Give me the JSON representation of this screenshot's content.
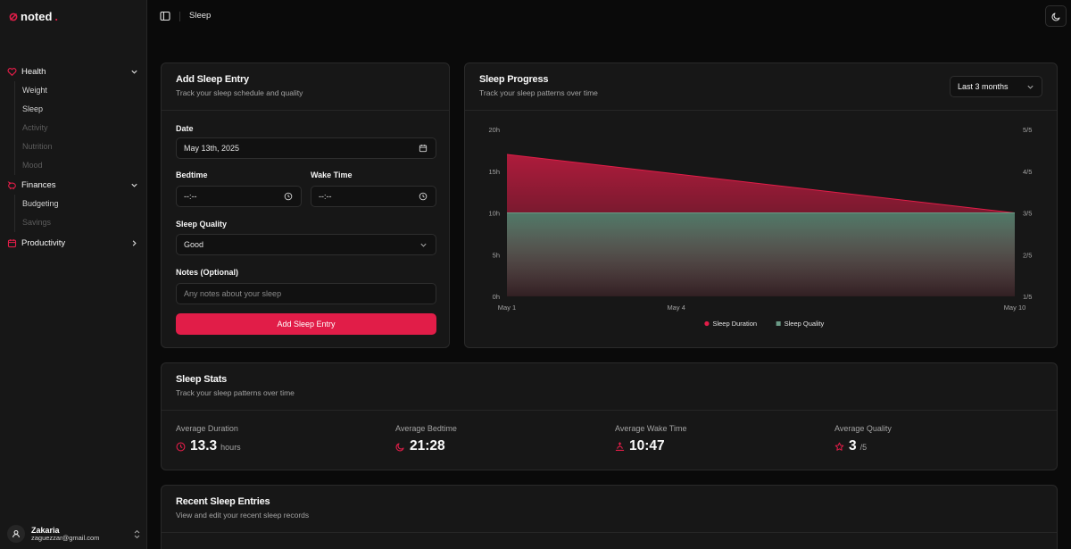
{
  "app": {
    "name": "noted",
    "name_dot": "."
  },
  "sidebar": {
    "groups": [
      {
        "label": "Health",
        "expanded": true,
        "items": [
          {
            "label": "Weight",
            "enabled": true
          },
          {
            "label": "Sleep",
            "enabled": true
          },
          {
            "label": "Activity",
            "enabled": false
          },
          {
            "label": "Nutrition",
            "enabled": false
          },
          {
            "label": "Mood",
            "enabled": false
          }
        ]
      },
      {
        "label": "Finances",
        "expanded": true,
        "items": [
          {
            "label": "Budgeting",
            "enabled": true
          },
          {
            "label": "Savings",
            "enabled": false
          }
        ]
      },
      {
        "label": "Productivity",
        "expanded": false,
        "items": []
      }
    ],
    "user": {
      "name": "Zakaria",
      "email": "zaguezzar@gmail.com"
    }
  },
  "header": {
    "breadcrumb": "Sleep"
  },
  "entry_form": {
    "title": "Add Sleep Entry",
    "subtitle": "Track your sleep schedule and quality",
    "date_label": "Date",
    "date_value": "May 13th, 2025",
    "bedtime_label": "Bedtime",
    "bedtime_value": "--:--",
    "waketime_label": "Wake Time",
    "waketime_value": "--:--",
    "quality_label": "Sleep Quality",
    "quality_value": "Good",
    "notes_label": "Notes (Optional)",
    "notes_placeholder": "Any notes about your sleep",
    "submit_label": "Add Sleep Entry"
  },
  "progress": {
    "title": "Sleep Progress",
    "subtitle": "Track your sleep patterns over time",
    "range_value": "Last 3 months"
  },
  "chart_data": {
    "type": "area",
    "x": [
      "May 1",
      "May 10"
    ],
    "x_ticks": [
      "May 1",
      "May 4",
      "May 10"
    ],
    "series": [
      {
        "name": "Sleep Duration",
        "axis": "left",
        "values": [
          17,
          10
        ],
        "color": "#e11d48"
      },
      {
        "name": "Sleep Quality",
        "axis": "right",
        "values": [
          3,
          3
        ],
        "color": "#4f7a68"
      }
    ],
    "y_left": {
      "ticks": [
        "0h",
        "5h",
        "10h",
        "15h",
        "20h"
      ],
      "ylim": [
        0,
        20
      ]
    },
    "y_right": {
      "ticks": [
        "1/5",
        "2/5",
        "3/5",
        "4/5",
        "5/5"
      ],
      "ylim": [
        1,
        5
      ]
    },
    "grid": false,
    "legend": "bottom"
  },
  "stats": {
    "title": "Sleep Stats",
    "subtitle": "Track your sleep patterns over time",
    "items": [
      {
        "label": "Average Duration",
        "value": "13.3",
        "unit": "hours",
        "icon": "clock-icon"
      },
      {
        "label": "Average Bedtime",
        "value": "21:28",
        "unit": "",
        "icon": "moon-icon"
      },
      {
        "label": "Average Wake Time",
        "value": "10:47",
        "unit": "",
        "icon": "sunrise-icon"
      },
      {
        "label": "Average Quality",
        "value": "3",
        "unit": "/5",
        "icon": "star-icon"
      }
    ]
  },
  "recent": {
    "title": "Recent Sleep Entries",
    "subtitle": "View and edit your recent sleep records"
  },
  "colors": {
    "accent": "#e11d48",
    "quality": "#4f7a68",
    "background": "#0a0a0a",
    "card": "#171717"
  }
}
